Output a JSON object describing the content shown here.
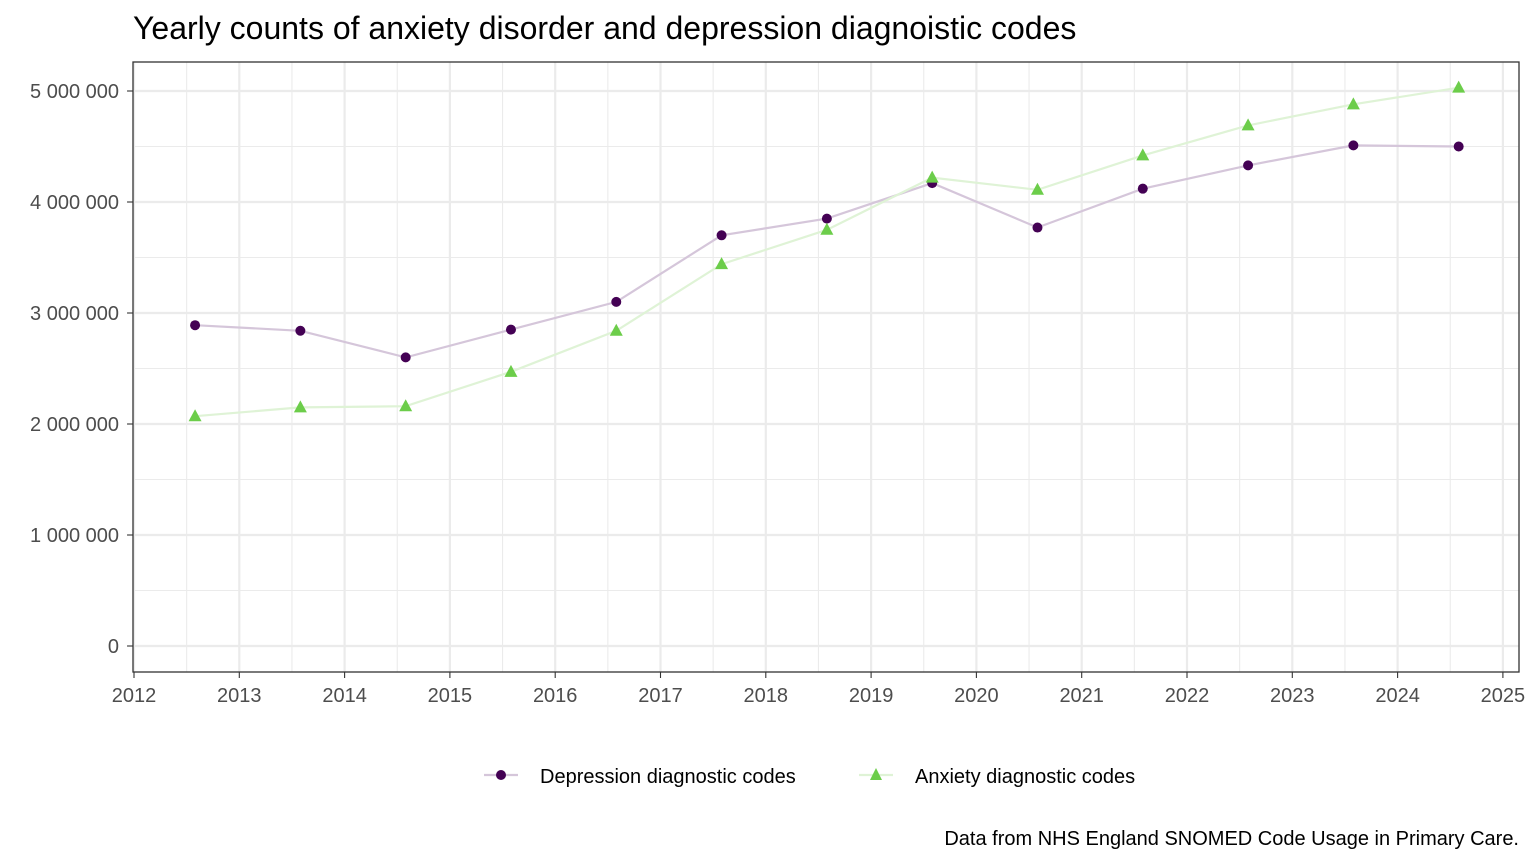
{
  "chart_data": {
    "type": "line",
    "title": "Yearly counts of anxiety disorder and depression diagnoistic codes",
    "caption": "Data from NHS England SNOMED Code Usage in Primary Care.",
    "xlabel": "",
    "ylabel": "",
    "xlim": [
      2012,
      2025
    ],
    "ylim": [
      0,
      5000000
    ],
    "x_ticks": [
      2012,
      2013,
      2014,
      2015,
      2016,
      2017,
      2018,
      2019,
      2020,
      2021,
      2022,
      2023,
      2024,
      2025
    ],
    "x_tick_labels": [
      "2012",
      "2013",
      "2014",
      "2015",
      "2016",
      "2017",
      "2018",
      "2019",
      "2020",
      "2021",
      "2022",
      "2023",
      "2024",
      "2025"
    ],
    "y_ticks": [
      0,
      1000000,
      2000000,
      3000000,
      4000000,
      5000000
    ],
    "y_tick_labels": [
      "0",
      "1 000 000",
      "2 000 000",
      "3 000 000",
      "4 000 000",
      "5 000 000"
    ],
    "grid": true,
    "legend_position": "bottom",
    "x": [
      2012.58,
      2013.58,
      2014.58,
      2015.58,
      2016.58,
      2017.58,
      2018.58,
      2019.58,
      2020.58,
      2021.58,
      2022.58,
      2023.58,
      2024.58
    ],
    "series": [
      {
        "name": "Depression diagnostic codes",
        "color": "#440154",
        "line_color": "#d5c6da",
        "marker": "circle",
        "values": [
          2890000,
          2840000,
          2600000,
          2850000,
          3100000,
          3700000,
          3850000,
          4170000,
          3770000,
          4120000,
          4330000,
          4510000,
          4500000
        ]
      },
      {
        "name": "Anxiety diagnostic codes",
        "color": "#6ccd4a",
        "line_color": "#dff3d6",
        "marker": "triangle",
        "values": [
          2070000,
          2150000,
          2160000,
          2470000,
          2840000,
          3440000,
          3750000,
          4220000,
          4110000,
          4420000,
          4690000,
          4880000,
          5030000
        ]
      }
    ]
  }
}
